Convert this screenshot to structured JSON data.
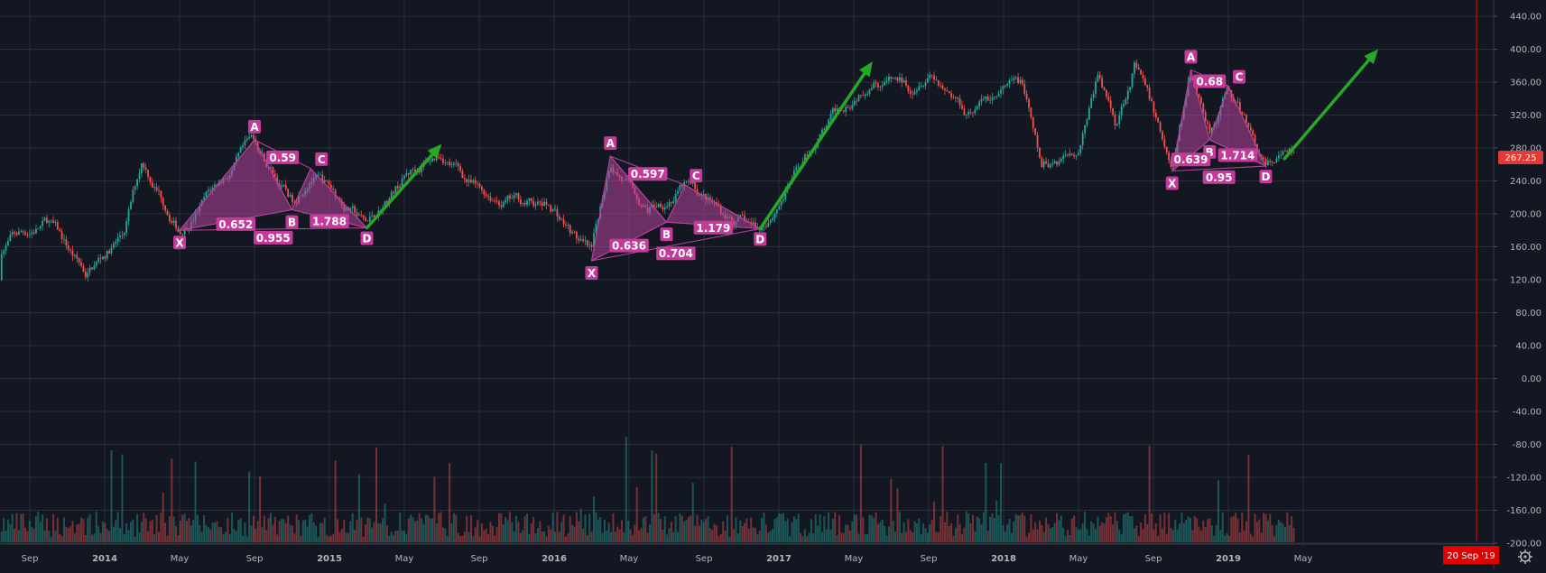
{
  "chart_data": {
    "type": "candlestick",
    "colors": {
      "background": "#131722",
      "grid": "#2a2e39",
      "up": "#26a69a",
      "down": "#ef5350",
      "pattern_fill": "#b5449a",
      "pattern_label": "#c5399a",
      "arrow": "#27a827",
      "current_price_badge": "#e53935",
      "end_marker": "#ff0000"
    },
    "y_ticks": [
      "440.00",
      "400.00",
      "360.00",
      "320.00",
      "280.00",
      "240.00",
      "200.00",
      "160.00",
      "120.00",
      "80.00",
      "40.00",
      "0.00",
      "-40.00",
      "-80.00",
      "-120.00",
      "-160.00",
      "-200.00"
    ],
    "ylim": [
      -200,
      440
    ],
    "x_tick_labels": [
      "Sep",
      "2014",
      "May",
      "Sep",
      "2015",
      "May",
      "Sep",
      "2016",
      "May",
      "Sep",
      "2017",
      "May",
      "Sep",
      "2018",
      "May",
      "Sep",
      "2019",
      "May"
    ],
    "current_price": "267.25",
    "end_date_label": "20 Sep '19",
    "price_series": {
      "start": "2013-06",
      "end": "2019-04",
      "anchor_points": [
        [
          "2013-06",
          120
        ],
        [
          "2013-08",
          170
        ],
        [
          "2013-10",
          190
        ],
        [
          "2013-12",
          125
        ],
        [
          "2014-02",
          175
        ],
        [
          "2014-03",
          265
        ],
        [
          "2014-05",
          185
        ],
        [
          "2014-09",
          285
        ],
        [
          "2014-11",
          215
        ],
        [
          "2014-12",
          255
        ],
        [
          "2015-03",
          185
        ],
        [
          "2015-05",
          245
        ],
        [
          "2015-07",
          275
        ],
        [
          "2015-09",
          225
        ],
        [
          "2015-11",
          215
        ],
        [
          "2016-01",
          205
        ],
        [
          "2016-03",
          145
        ],
        [
          "2016-04",
          265
        ],
        [
          "2016-06",
          205
        ],
        [
          "2016-08",
          235
        ],
        [
          "2016-10",
          200
        ],
        [
          "2016-12",
          180
        ],
        [
          "2017-03",
          290
        ],
        [
          "2017-06",
          375
        ],
        [
          "2017-08",
          355
        ],
        [
          "2017-09",
          385
        ],
        [
          "2017-11",
          330
        ],
        [
          "2018-02",
          355
        ],
        [
          "2018-03",
          250
        ],
        [
          "2018-05",
          285
        ],
        [
          "2018-06",
          370
        ],
        [
          "2018-07",
          310
        ],
        [
          "2018-08",
          385
        ],
        [
          "2018-09",
          320
        ],
        [
          "2018-10",
          255
        ],
        [
          "2018-11",
          370
        ],
        [
          "2018-12",
          305
        ],
        [
          "2019-01",
          355
        ],
        [
          "2019-03",
          255
        ],
        [
          "2019-04",
          267
        ]
      ]
    },
    "volume_note": "volume histogram drawn in lower pane, colored by candle direction",
    "patterns": [
      {
        "name": "pattern-1",
        "points": [
          {
            "label": "X",
            "date": "2014-05",
            "value": 180
          },
          {
            "label": "A",
            "date": "2014-09",
            "value": 290
          },
          {
            "label": "B",
            "date": "2014-11",
            "value": 205
          },
          {
            "label": "C",
            "date": "2014-12",
            "value": 255
          },
          {
            "label": "D",
            "date": "2015-03",
            "value": 183
          }
        ],
        "ratios": [
          "0.59",
          "0.652",
          "1.788",
          "0.955"
        ]
      },
      {
        "name": "pattern-2",
        "points": [
          {
            "label": "X",
            "date": "2016-03",
            "value": 143
          },
          {
            "label": "A",
            "date": "2016-04",
            "value": 270
          },
          {
            "label": "B",
            "date": "2016-07",
            "value": 190
          },
          {
            "label": "C",
            "date": "2016-08",
            "value": 235
          },
          {
            "label": "D",
            "date": "2016-12",
            "value": 182
          }
        ],
        "ratios": [
          "0.597",
          "0.636",
          "1.179",
          "0.704"
        ]
      },
      {
        "name": "pattern-3",
        "points": [
          {
            "label": "X",
            "date": "2018-10",
            "value": 252
          },
          {
            "label": "A",
            "date": "2018-11",
            "value": 375
          },
          {
            "label": "B",
            "date": "2018-12",
            "value": 290
          },
          {
            "label": "C",
            "date": "2019-01",
            "value": 355
          },
          {
            "label": "D",
            "date": "2019-03",
            "value": 258
          }
        ],
        "ratios": [
          "0.68",
          "0.639",
          "1.714",
          "0.95"
        ]
      }
    ],
    "projection_arrows": [
      {
        "from": {
          "date": "2015-03",
          "value": 183
        },
        "to": {
          "date": "2015-07",
          "value": 285
        }
      },
      {
        "from": {
          "date": "2016-12",
          "value": 182
        },
        "to": {
          "date": "2017-06",
          "value": 385
        }
      },
      {
        "from": {
          "date": "2019-04",
          "value": 267
        },
        "to": {
          "date": "2019-09",
          "value": 400
        }
      }
    ]
  }
}
